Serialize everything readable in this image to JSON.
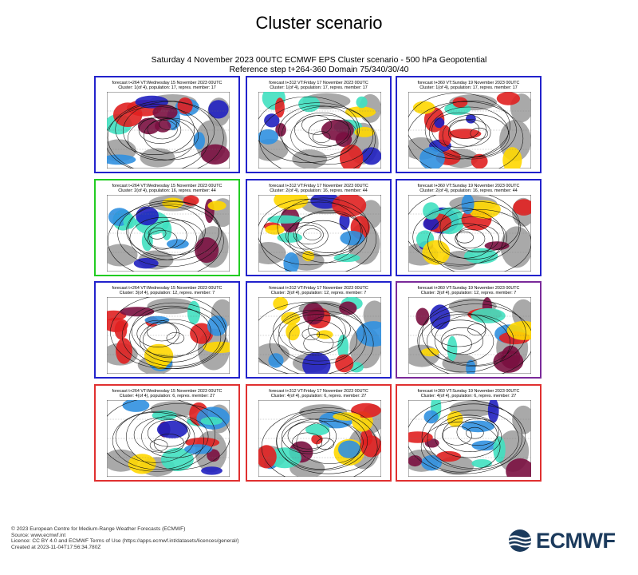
{
  "page": {
    "title": "Cluster scenario",
    "heading_line1": "Saturday 4 November 2023 00UTC ECMWF EPS Cluster scenario - 500 hPa Geopotential",
    "heading_line2": "Reference step t+264-360 Domain 75/340/30/40"
  },
  "chart_data": {
    "type": "other",
    "description_kind": "grid of 500 hPa geopotential cluster maps",
    "rows": [
      {
        "cluster": 1,
        "border_color": "#2222cc",
        "panels": [
          {
            "line1": "forecast t+264 VT:Wednesday 15 November 2023 00UTC",
            "line2": "Cluster: 1(of 4), population: 17, repres. member: 17"
          },
          {
            "line1": "forecast t+312 VT:Friday 17 November 2023 00UTC",
            "line2": "Cluster: 1(of 4), population: 17, repres. member: 17"
          },
          {
            "line1": "forecast t+360 VT:Sunday 19 November 2023 00UTC",
            "line2": "Cluster: 1(of 4), population: 17, repres. member: 17"
          }
        ]
      },
      {
        "cluster": 2,
        "border_color": "#2222cc",
        "panels": [
          {
            "line1": "forecast t+264 VT:Wednesday 15 November 2023 00UTC",
            "line2": "Cluster: 2(of 4), population: 16, repres. member: 44",
            "border_color": "#22cc22"
          },
          {
            "line1": "forecast t+312 VT:Friday 17 November 2023 00UTC",
            "line2": "Cluster: 2(of 4), population: 16, repres. member: 44"
          },
          {
            "line1": "forecast t+360 VT:Sunday 19 November 2023 00UTC",
            "line2": "Cluster: 2(of 4), population: 16, repres. member: 44"
          }
        ]
      },
      {
        "cluster": 3,
        "border_color": "#2222cc",
        "panels": [
          {
            "line1": "forecast t+264 VT:Wednesday 15 November 2023 00UTC",
            "line2": "Cluster: 3(of 4), population: 12, repres. member: 7"
          },
          {
            "line1": "forecast t+312 VT:Friday 17 November 2023 00UTC",
            "line2": "Cluster: 3(of 4), population: 12, repres. member: 7"
          },
          {
            "line1": "forecast t+360 VT:Sunday 19 November 2023 00UTC",
            "line2": "Cluster: 3(of 4), population: 12, repres. member: 7",
            "border_color": "#7a2a9a"
          }
        ]
      },
      {
        "cluster": 4,
        "border_color": "#e03030",
        "panels": [
          {
            "line1": "forecast t+264 VT:Wednesday 15 November 2023 00UTC",
            "line2": "Cluster: 4(of 4), population: 6, repres. member: 27"
          },
          {
            "line1": "forecast t+312 VT:Friday 17 November 2023 00UTC",
            "line2": "Cluster: 4(of 4), population: 6, repres. member: 27"
          },
          {
            "line1": "forecast t+360 VT:Sunday 19 November 2023 00UTC",
            "line2": "Cluster: 4(of 4), population: 6, repres. member: 27"
          }
        ]
      }
    ],
    "anomaly_colors": {
      "strong_positive": "#7a1040",
      "positive": "#e02020",
      "weak_positive": "#ffd700",
      "weak_negative": "#40e0c0",
      "negative": "#3090e0",
      "strong_negative": "#2020c0",
      "land": "#9a9a9a"
    }
  },
  "footer": {
    "line1": "© 2023 European Centre for Medium-Range Weather Forecasts (ECMWF)",
    "line2": "Source: www.ecmwf.int",
    "line3": "Licence: CC BY 4.0 and ECMWF Terms of Use (https://apps.ecmwf.int/datasets/licences/general/)",
    "line4": "Created at 2023-11-04T17:56:34.780Z"
  },
  "logo": {
    "text": "ECMWF",
    "color": "#1b3a5c"
  }
}
